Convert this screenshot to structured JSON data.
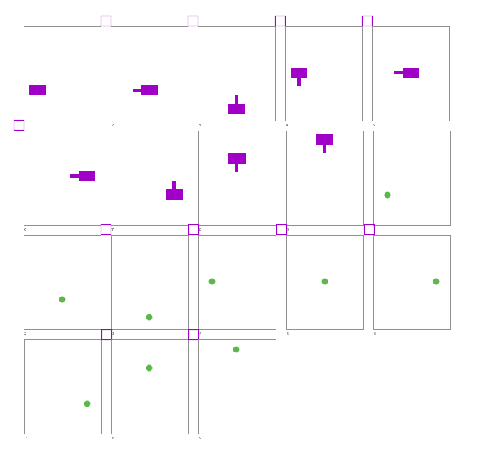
{
  "colors": {
    "frame": "#909090",
    "marker": "#a000c8",
    "shape": "#a000c8",
    "dot": "#5cb848"
  },
  "panels": [
    {
      "label": "",
      "marker": true,
      "content": "shape",
      "icon": "rect-icon"
    },
    {
      "label": "2",
      "marker": true,
      "content": "shape",
      "icon": "arrow-left-icon"
    },
    {
      "label": "3",
      "marker": true,
      "content": "shape",
      "icon": "arrow-up-icon"
    },
    {
      "label": "4",
      "marker": true,
      "content": "shape",
      "icon": "arrow-down-icon"
    },
    {
      "label": "5",
      "marker": false,
      "content": "shape",
      "icon": "arrow-left-icon"
    },
    {
      "label": "6",
      "marker": true,
      "content": "shape",
      "icon": "arrow-left-icon"
    },
    {
      "label": "7",
      "marker": false,
      "content": "shape",
      "icon": "arrow-up-icon"
    },
    {
      "label": "8",
      "marker": false,
      "content": "shape",
      "icon": "arrow-down-icon"
    },
    {
      "label": "9",
      "marker": false,
      "content": "shape",
      "icon": "arrow-down-icon"
    },
    {
      "label": "",
      "marker": false,
      "content": "dot",
      "icon": "dot-icon"
    },
    {
      "label": "2",
      "marker": true,
      "content": "dot",
      "icon": "dot-icon"
    },
    {
      "label": "3",
      "marker": true,
      "content": "dot",
      "icon": "dot-icon"
    },
    {
      "label": "4",
      "marker": true,
      "content": "dot",
      "icon": "dot-icon"
    },
    {
      "label": "5",
      "marker": true,
      "content": "dot",
      "icon": "dot-icon"
    },
    {
      "label": "6",
      "marker": false,
      "content": "dot",
      "icon": "dot-icon"
    },
    {
      "label": "7",
      "marker": true,
      "content": "dot",
      "icon": "dot-icon"
    },
    {
      "label": "8",
      "marker": true,
      "content": "dot",
      "icon": "dot-icon"
    },
    {
      "label": "9",
      "marker": false,
      "content": "dot",
      "icon": "dot-icon"
    }
  ]
}
